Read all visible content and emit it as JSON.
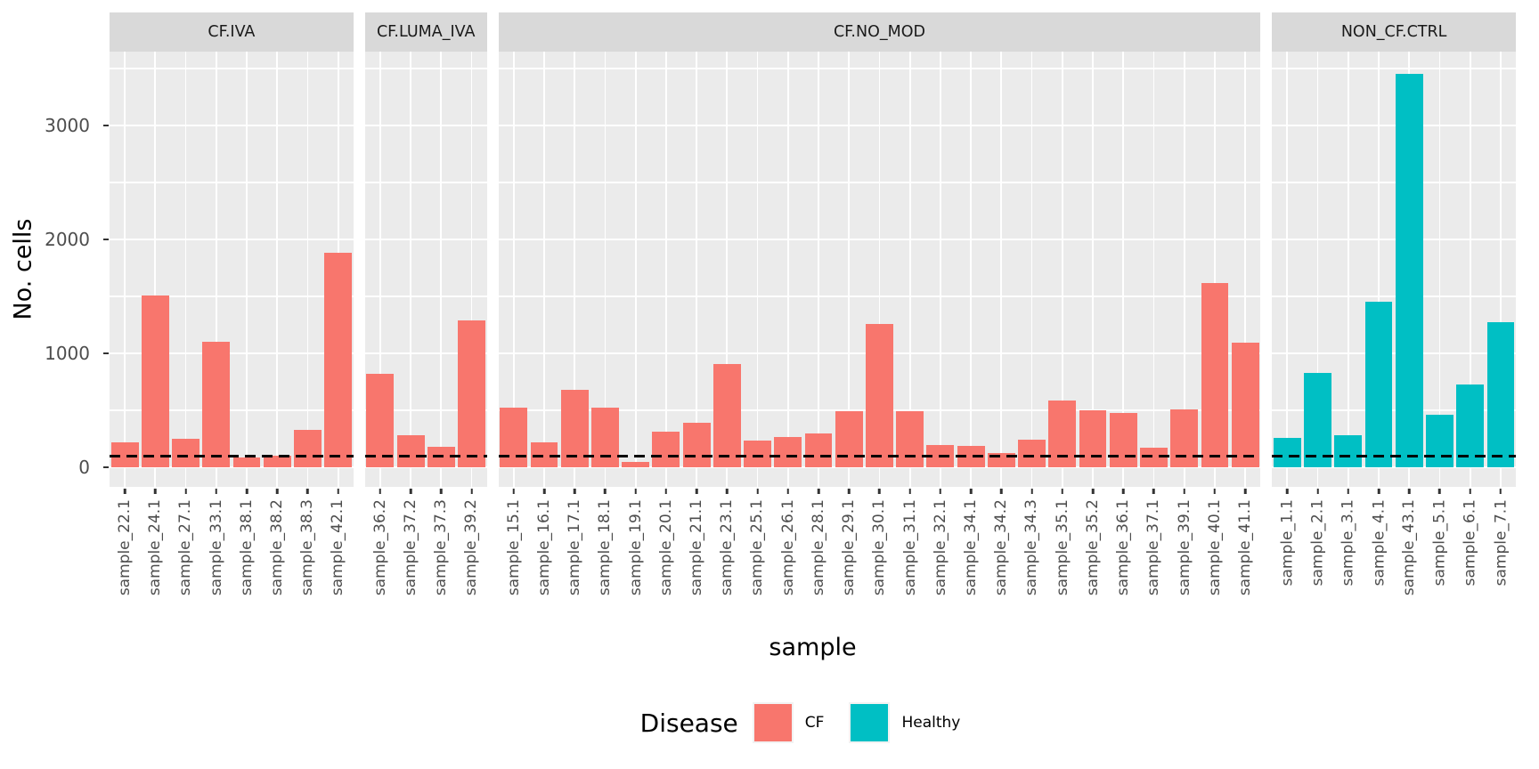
{
  "y_axis": {
    "title": "No. cells"
  },
  "x_axis": {
    "title": "sample"
  },
  "legend": {
    "title": "Disease",
    "items": [
      {
        "label": "CF",
        "color": "#F8766D"
      },
      {
        "label": "Healthy",
        "color": "#00BFC4"
      }
    ]
  },
  "chart_data": {
    "type": "bar",
    "title": "",
    "xlabel": "sample",
    "ylabel": "No. cells",
    "ylim": [
      -172,
      3648
    ],
    "y_major_ticks": [
      0,
      1000,
      2000,
      3000
    ],
    "y_minor_ticks": [
      500,
      1500,
      2500,
      3500
    ],
    "grid": "on",
    "legend_position": "bottom",
    "threshold_line": {
      "value": 100,
      "style": "dashed",
      "color": "#000000"
    },
    "panel_background": "#EBEBEB",
    "strip_background": "#D9D9D9",
    "colors": {
      "CF": "#F8766D",
      "Healthy": "#00BFC4"
    },
    "facets": [
      {
        "label": "CF.IVA",
        "disease": "CF",
        "samples": [
          {
            "name": "sample_22.1",
            "value": 220
          },
          {
            "name": "sample_24.1",
            "value": 1510
          },
          {
            "name": "sample_27.1",
            "value": 250
          },
          {
            "name": "sample_33.1",
            "value": 1100
          },
          {
            "name": "sample_38.1",
            "value": 85
          },
          {
            "name": "sample_38.2",
            "value": 100
          },
          {
            "name": "sample_38.3",
            "value": 325
          },
          {
            "name": "sample_42.1",
            "value": 1880
          }
        ]
      },
      {
        "label": "CF.LUMA_IVA",
        "disease": "CF",
        "samples": [
          {
            "name": "sample_36.2",
            "value": 820
          },
          {
            "name": "sample_37.2",
            "value": 285
          },
          {
            "name": "sample_37.3",
            "value": 180
          },
          {
            "name": "sample_39.2",
            "value": 1290
          }
        ]
      },
      {
        "label": "CF.NO_MOD",
        "disease": "CF",
        "samples": [
          {
            "name": "sample_15.1",
            "value": 525
          },
          {
            "name": "sample_16.1",
            "value": 220
          },
          {
            "name": "sample_17.1",
            "value": 680
          },
          {
            "name": "sample_18.1",
            "value": 520
          },
          {
            "name": "sample_19.1",
            "value": 45
          },
          {
            "name": "sample_20.1",
            "value": 310
          },
          {
            "name": "sample_21.1",
            "value": 390
          },
          {
            "name": "sample_23.1",
            "value": 905
          },
          {
            "name": "sample_25.1",
            "value": 235
          },
          {
            "name": "sample_26.1",
            "value": 265
          },
          {
            "name": "sample_28.1",
            "value": 295
          },
          {
            "name": "sample_29.1",
            "value": 490
          },
          {
            "name": "sample_30.1",
            "value": 1260
          },
          {
            "name": "sample_31.1",
            "value": 490
          },
          {
            "name": "sample_32.1",
            "value": 195
          },
          {
            "name": "sample_34.1",
            "value": 185
          },
          {
            "name": "sample_34.2",
            "value": 125
          },
          {
            "name": "sample_34.3",
            "value": 245
          },
          {
            "name": "sample_35.1",
            "value": 585
          },
          {
            "name": "sample_35.2",
            "value": 500
          },
          {
            "name": "sample_36.1",
            "value": 480
          },
          {
            "name": "sample_37.1",
            "value": 175
          },
          {
            "name": "sample_39.1",
            "value": 510
          },
          {
            "name": "sample_40.1",
            "value": 1620
          },
          {
            "name": "sample_41.1",
            "value": 1090
          }
        ]
      },
      {
        "label": "NON_CF.CTRL",
        "disease": "Healthy",
        "samples": [
          {
            "name": "sample_1.1",
            "value": 260
          },
          {
            "name": "sample_2.1",
            "value": 830
          },
          {
            "name": "sample_3.1",
            "value": 285
          },
          {
            "name": "sample_4.1",
            "value": 1450
          },
          {
            "name": "sample_43.1",
            "value": 3450
          },
          {
            "name": "sample_5.1",
            "value": 460
          },
          {
            "name": "sample_6.1",
            "value": 730
          },
          {
            "name": "sample_7.1",
            "value": 1270
          }
        ]
      }
    ]
  }
}
